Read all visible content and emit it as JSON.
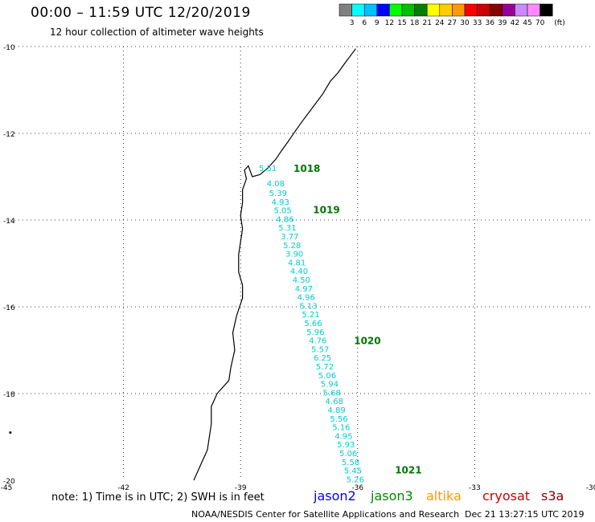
{
  "title": "00:00 – 11:59 UTC 12/20/2019",
  "subtitle": "12 hour collection of altimeter wave heights",
  "footer": {
    "note": "note: 1) Time is in UTC; 2) SWH is in feet",
    "credit": "NOAA/NESDIS Center for Satellite Applications and Research",
    "timestamp": "Dec 21 13:27:15 UTC 2019"
  },
  "satellites": [
    {
      "name": "jason2",
      "color": "#0000ff"
    },
    {
      "name": "jason3",
      "color": "#008800"
    },
    {
      "name": "altika",
      "color": "#ff9900"
    },
    {
      "name": "cryosat",
      "color": "#cc0000"
    },
    {
      "name": "s3a",
      "color": "#880000"
    }
  ],
  "colorbar": {
    "unit": "(ft)",
    "labels": [
      "3",
      "6",
      "9",
      "12",
      "15",
      "18",
      "21",
      "24",
      "27",
      "30",
      "33",
      "36",
      "39",
      "42",
      "45",
      "70"
    ],
    "colors": [
      "#808080",
      "#00ffff",
      "#00c0ff",
      "#0000ff",
      "#00ff00",
      "#00c000",
      "#008000",
      "#ffff00",
      "#ffcc00",
      "#ff9900",
      "#ff0000",
      "#cc0000",
      "#880000",
      "#990099",
      "#cc88ff",
      "#ff88ff",
      "#000000"
    ]
  },
  "map": {
    "lon_range": [
      -45,
      -30
    ],
    "lat_range": [
      -20,
      -10
    ],
    "lon_ticks": [
      -45,
      -42,
      -39,
      -36,
      -33,
      -30
    ],
    "lat_ticks": [
      -10,
      -12,
      -14,
      -16,
      -18,
      -20
    ],
    "lon_tick_labels": [
      "-45",
      "-42",
      "-39",
      "-36",
      "-33",
      "-30"
    ],
    "lat_tick_labels": [
      "-10",
      "-12",
      "-14",
      "-16",
      "-18",
      "-20"
    ],
    "coastline": [
      [
        -36.05,
        -10.05
      ],
      [
        -36.3,
        -10.35
      ],
      [
        -36.5,
        -10.6
      ],
      [
        -36.7,
        -10.8
      ],
      [
        -36.9,
        -11.1
      ],
      [
        -37.15,
        -11.4
      ],
      [
        -37.4,
        -11.7
      ],
      [
        -37.6,
        -11.95
      ],
      [
        -37.75,
        -12.15
      ],
      [
        -37.95,
        -12.4
      ],
      [
        -38.1,
        -12.6
      ],
      [
        -38.3,
        -12.8
      ],
      [
        -38.5,
        -12.95
      ],
      [
        -38.7,
        -13.0
      ],
      [
        -38.8,
        -12.75
      ],
      [
        -38.9,
        -12.85
      ],
      [
        -38.85,
        -13.05
      ],
      [
        -38.95,
        -13.3
      ],
      [
        -38.95,
        -13.6
      ],
      [
        -39.0,
        -13.9
      ],
      [
        -38.95,
        -14.2
      ],
      [
        -39.0,
        -14.5
      ],
      [
        -39.05,
        -14.8
      ],
      [
        -39.05,
        -15.2
      ],
      [
        -38.95,
        -15.5
      ],
      [
        -38.95,
        -15.8
      ],
      [
        -39.1,
        -16.2
      ],
      [
        -39.2,
        -16.6
      ],
      [
        -39.15,
        -17.0
      ],
      [
        -39.25,
        -17.4
      ],
      [
        -39.3,
        -17.7
      ],
      [
        -39.6,
        -18.0
      ],
      [
        -39.75,
        -18.3
      ],
      [
        -39.75,
        -18.7
      ],
      [
        -39.8,
        -19.0
      ],
      [
        -39.85,
        -19.3
      ],
      [
        -40.0,
        -19.6
      ],
      [
        -40.1,
        -19.8
      ],
      [
        -40.2,
        -20.0
      ]
    ],
    "islands": [
      [
        -44.9,
        -18.9
      ]
    ]
  },
  "track_points": [
    {
      "lat": -12.8,
      "lon": -38.3,
      "label": "5.51"
    },
    {
      "lat": -13.15,
      "lon": -38.1,
      "label": "4.08"
    },
    {
      "lat": -13.37,
      "lon": -38.04,
      "label": "5.39"
    },
    {
      "lat": -13.57,
      "lon": -37.98,
      "label": "4.93"
    },
    {
      "lat": -13.77,
      "lon": -37.92,
      "label": "5.05"
    },
    {
      "lat": -13.97,
      "lon": -37.86,
      "label": "4.86"
    },
    {
      "lat": -14.17,
      "lon": -37.8,
      "label": "5.31"
    },
    {
      "lat": -14.37,
      "lon": -37.74,
      "label": "3.77"
    },
    {
      "lat": -14.57,
      "lon": -37.68,
      "label": "5.28"
    },
    {
      "lat": -14.77,
      "lon": -37.62,
      "label": "3.90"
    },
    {
      "lat": -14.97,
      "lon": -37.56,
      "label": "4.81"
    },
    {
      "lat": -15.17,
      "lon": -37.5,
      "label": "4.40"
    },
    {
      "lat": -15.37,
      "lon": -37.44,
      "label": "4.50"
    },
    {
      "lat": -15.57,
      "lon": -37.38,
      "label": "4.97"
    },
    {
      "lat": -15.77,
      "lon": -37.32,
      "label": "4.96"
    },
    {
      "lat": -15.97,
      "lon": -37.26,
      "label": "5.13"
    },
    {
      "lat": -16.17,
      "lon": -37.2,
      "label": "5.21"
    },
    {
      "lat": -16.37,
      "lon": -37.14,
      "label": "5.66"
    },
    {
      "lat": -16.57,
      "lon": -37.08,
      "label": "5.96"
    },
    {
      "lat": -16.77,
      "lon": -37.02,
      "label": "4.76"
    },
    {
      "lat": -16.97,
      "lon": -36.96,
      "label": "5.57"
    },
    {
      "lat": -17.17,
      "lon": -36.9,
      "label": "6.25"
    },
    {
      "lat": -17.37,
      "lon": -36.84,
      "label": "5.72"
    },
    {
      "lat": -17.57,
      "lon": -36.78,
      "label": "5.06"
    },
    {
      "lat": -17.77,
      "lon": -36.72,
      "label": "5.94"
    },
    {
      "lat": -17.97,
      "lon": -36.66,
      "label": "5.68"
    },
    {
      "lat": -18.17,
      "lon": -36.6,
      "label": "4.68"
    },
    {
      "lat": -18.37,
      "lon": -36.54,
      "label": "4.89"
    },
    {
      "lat": -18.57,
      "lon": -36.48,
      "label": "5.56"
    },
    {
      "lat": -18.77,
      "lon": -36.42,
      "label": "5.16"
    },
    {
      "lat": -18.97,
      "lon": -36.36,
      "label": "4.95"
    },
    {
      "lat": -19.17,
      "lon": -36.3,
      "label": "5.93"
    },
    {
      "lat": -19.37,
      "lon": -36.24,
      "label": "5.06"
    },
    {
      "lat": -19.57,
      "lon": -36.18,
      "label": "5.58"
    },
    {
      "lat": -19.77,
      "lon": -36.12,
      "label": "5.45"
    },
    {
      "lat": -19.97,
      "lon": -36.06,
      "label": "5.26"
    }
  ],
  "track_color": "#00cccc",
  "time_labels": [
    {
      "lat": -12.8,
      "lon": -37.3,
      "label": "1018"
    },
    {
      "lat": -13.75,
      "lon": -36.8,
      "label": "1019"
    },
    {
      "lat": -16.77,
      "lon": -35.75,
      "label": "1020"
    },
    {
      "lat": -19.75,
      "lon": -34.7,
      "label": "1021"
    }
  ],
  "time_label_color": "#007700"
}
